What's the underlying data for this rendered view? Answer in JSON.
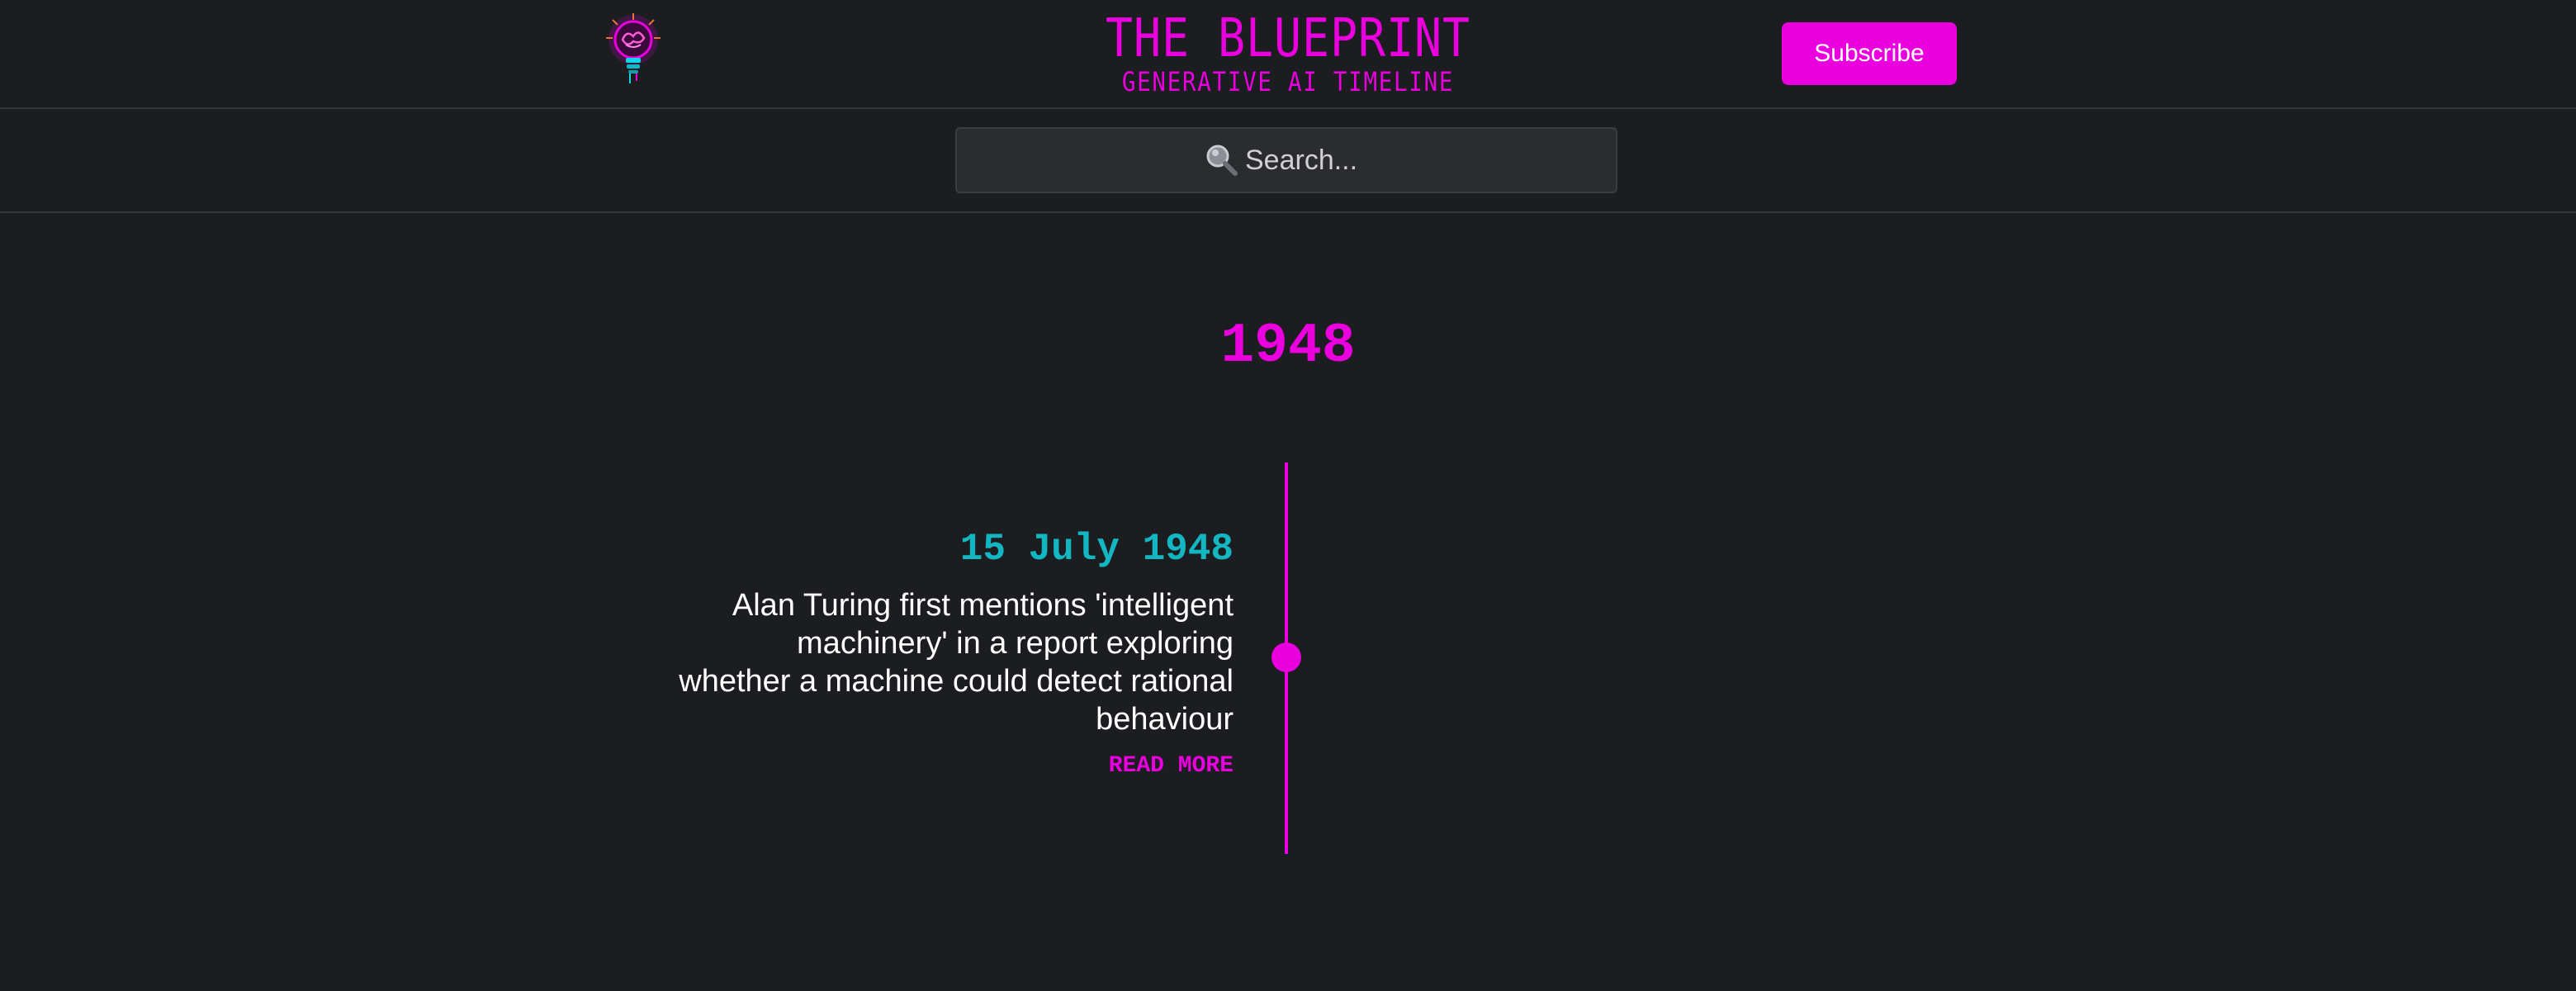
{
  "header": {
    "logo_icon": "lightbulb-brain-icon",
    "title": "THE BLUEPRINT",
    "subtitle": "GENERATIVE AI TIMELINE",
    "subscribe_label": "Subscribe"
  },
  "search": {
    "icon": "magnifying-glass-icon",
    "placeholder": "Search..."
  },
  "timeline": {
    "year": "1948",
    "entries": [
      {
        "date": "15 July 1948",
        "text": "Alan Turing first mentions 'intelligent machinery' in a report exploring whether a machine could detect rational behaviour",
        "link_label": "READ MORE"
      }
    ]
  },
  "colors": {
    "background": "#1c1d20",
    "accent": "#ea00de",
    "date": "#13b7c2",
    "search_bg": "#2b2c30"
  }
}
